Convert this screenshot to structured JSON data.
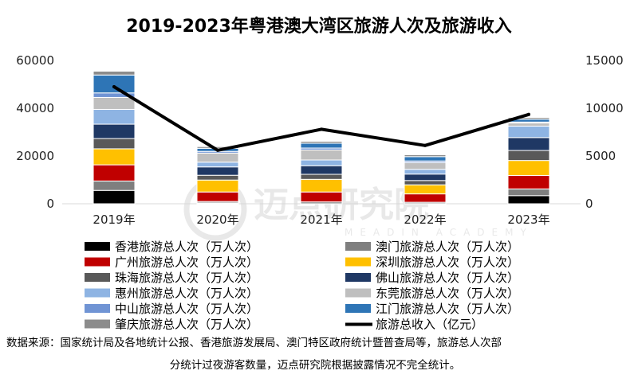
{
  "chart_data": {
    "type": "bar",
    "title": "2019-2023年粤港澳大湾区旅游人次及旅游收入",
    "categories": [
      "2019年",
      "2020年",
      "2021年",
      "2022年",
      "2023年"
    ],
    "y_left": {
      "ticks": [
        "0",
        "20000",
        "40000",
        "60000"
      ],
      "ylim": [
        0,
        60000
      ]
    },
    "y_right": {
      "ticks": [
        "0",
        "5000",
        "10000",
        "15000"
      ],
      "ylim": [
        0,
        15000
      ]
    },
    "series": [
      {
        "name": "香港旅游总人次（万人次）",
        "color": "#000000",
        "values": [
          5590,
          360,
          9,
          60,
          3400
        ]
      },
      {
        "name": "澳门旅游总人次（万人次）",
        "color": "#7f7f7f",
        "values": [
          3940,
          590,
          770,
          570,
          2820
        ]
      },
      {
        "name": "广州旅游总人次（万人次）",
        "color": "#c00000",
        "values": [
          6770,
          3980,
          4150,
          3500,
          5600
        ]
      },
      {
        "name": "深圳旅游总人次（万人次）",
        "color": "#ffc000",
        "values": [
          6720,
          5000,
          5300,
          3800,
          6300
        ]
      },
      {
        "name": "珠海旅游总人次（万人次）",
        "color": "#595959",
        "values": [
          4300,
          2000,
          2100,
          1800,
          4200
        ]
      },
      {
        "name": "佛山旅游总人次（万人次）",
        "color": "#1f3864",
        "values": [
          6000,
          3500,
          3600,
          2700,
          5400
        ]
      },
      {
        "name": "惠州旅游总人次（万人次）",
        "color": "#8eb4e3",
        "values": [
          6200,
          2000,
          2400,
          2000,
          4800
        ]
      },
      {
        "name": "东莞旅游总人次（万人次）",
        "color": "#bfbfbf",
        "values": [
          5000,
          3800,
          4200,
          2800,
          1300
        ]
      },
      {
        "name": "中山旅游总人次（万人次）",
        "color": "#7094d4",
        "values": [
          1900,
          700,
          800,
          700,
          400
        ]
      },
      {
        "name": "江门旅游总人次（万人次）",
        "color": "#2e75b6",
        "values": [
          7500,
          1300,
          2000,
          1800,
          1200
        ]
      },
      {
        "name": "肇庆旅游总人次（万人次）",
        "color": "#8c8c8c",
        "values": [
          1600,
          700,
          800,
          800,
          700
        ]
      }
    ],
    "line_series": {
      "name": "旅游总收入（亿元）",
      "color": "#000000",
      "axis": "right",
      "values": [
        12250,
        5600,
        7800,
        6100,
        9350
      ]
    },
    "legend_position": "bottom",
    "grid": false
  },
  "watermark": {
    "cn": "迈点研究院",
    "en": "MEADIN ACADEMY"
  },
  "source": {
    "line1": "数据来源：国家统计局及各地统计公报、香港旅游发展局、澳门特区政府统计暨普查局等，旅游总人次部",
    "line2": "分统计过夜游客数量，迈点研究院根据披露情况不完全统计。"
  }
}
